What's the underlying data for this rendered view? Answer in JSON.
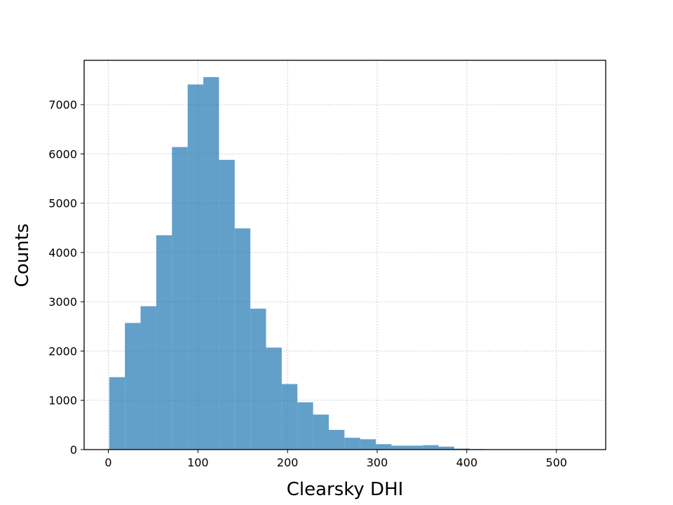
{
  "chart_data": {
    "type": "bar",
    "subtype": "histogram",
    "title": "",
    "xlabel": "Clearsky DHI",
    "ylabel": "Counts",
    "xlim": [
      -27,
      555
    ],
    "ylim": [
      0,
      7900
    ],
    "xticks": [
      0,
      100,
      200,
      300,
      400,
      500
    ],
    "yticks": [
      0,
      1000,
      2000,
      3000,
      4000,
      5000,
      6000,
      7000
    ],
    "grid": true,
    "grid_style": "dotted",
    "bar_color": "#1f77b4",
    "bar_opacity": 0.7,
    "bin_edges": [
      1,
      18.5,
      36,
      53.5,
      71,
      88.5,
      106,
      123.5,
      141,
      158.5,
      176,
      193.5,
      211,
      228.5,
      246,
      263.5,
      281,
      298.5,
      316,
      333.5,
      351,
      368.5,
      386,
      403.5,
      421,
      438.5,
      456,
      473.5,
      491,
      508.5,
      526
    ],
    "values": [
      1470,
      2570,
      2910,
      4350,
      6140,
      7410,
      7560,
      5880,
      4490,
      2860,
      2070,
      1330,
      960,
      710,
      400,
      240,
      210,
      110,
      80,
      80,
      90,
      60,
      20,
      10,
      5,
      3,
      2,
      1,
      1,
      1
    ]
  }
}
